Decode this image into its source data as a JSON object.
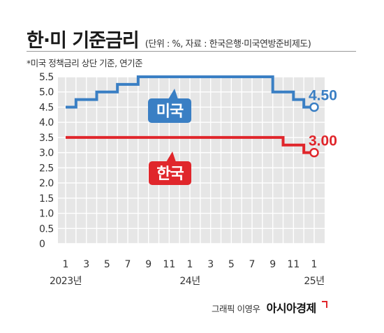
{
  "header": {
    "title": "한·미 기준금리",
    "source_note": "(단위 : %, 자료 : 한국은행·미국연방준비제도)",
    "footnote": "*미국 정책금리 상단 기준, 연기준"
  },
  "credit": {
    "byline": "그래픽 이영우",
    "brand": "아시아경제"
  },
  "colors": {
    "us": "#3a7fc4",
    "korea": "#e0262b",
    "grid_background": "#e6e6e6",
    "grid_lines": "#ffffff"
  },
  "chart_data": {
    "type": "line",
    "title": "한·미 기준금리",
    "x": [
      "2023-01",
      "2023-02",
      "2023-03",
      "2023-04",
      "2023-05",
      "2023-06",
      "2023-07",
      "2023-08",
      "2023-09",
      "2023-10",
      "2023-11",
      "2023-12",
      "2024-01",
      "2024-02",
      "2024-03",
      "2024-04",
      "2024-05",
      "2024-06",
      "2024-07",
      "2024-08",
      "2024-09",
      "2024-10",
      "2024-11",
      "2024-12",
      "2025-01"
    ],
    "x_tick_labels": [
      "1",
      "3",
      "5",
      "7",
      "9",
      "11",
      "1",
      "3",
      "5",
      "7",
      "9",
      "11",
      "1"
    ],
    "x_tick_positions": [
      "2023-01",
      "2023-03",
      "2023-05",
      "2023-07",
      "2023-09",
      "2023-11",
      "2024-01",
      "2024-03",
      "2024-05",
      "2024-07",
      "2024-09",
      "2024-11",
      "2025-01"
    ],
    "year_labels": [
      {
        "at": "2023-01",
        "text": "2023년"
      },
      {
        "at": "2024-01",
        "text": "24년"
      },
      {
        "at": "2025-01",
        "text": "25년"
      }
    ],
    "ylim": [
      0,
      5.5
    ],
    "y_ticks": [
      "0",
      "0.5",
      "1.0",
      "1.5",
      "2.0",
      "2.5",
      "3.0",
      "3.5",
      "4.0",
      "4.5",
      "5.0",
      "5.5"
    ],
    "grid": true,
    "series": [
      {
        "name": "미국",
        "color": "#3a7fc4",
        "values": [
          4.5,
          4.75,
          4.75,
          5.0,
          5.0,
          5.25,
          5.25,
          5.5,
          5.5,
          5.5,
          5.5,
          5.5,
          5.5,
          5.5,
          5.5,
          5.5,
          5.5,
          5.5,
          5.5,
          5.5,
          5.0,
          5.0,
          4.75,
          4.5,
          4.5
        ],
        "end_label": "4.50"
      },
      {
        "name": "한국",
        "color": "#e0262b",
        "values": [
          3.5,
          3.5,
          3.5,
          3.5,
          3.5,
          3.5,
          3.5,
          3.5,
          3.5,
          3.5,
          3.5,
          3.5,
          3.5,
          3.5,
          3.5,
          3.5,
          3.5,
          3.5,
          3.5,
          3.5,
          3.5,
          3.25,
          3.25,
          3.0,
          3.0
        ],
        "end_label": "3.00"
      }
    ]
  }
}
